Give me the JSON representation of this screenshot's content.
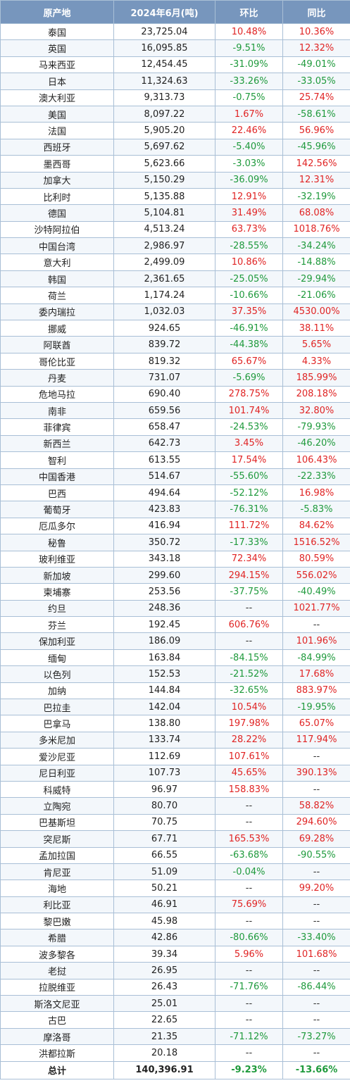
{
  "header": {
    "origin": "原产地",
    "amount": "2024年6月(吨)",
    "mom": "环比",
    "yoy": "同比"
  },
  "rows": [
    {
      "country": "泰国",
      "amount": "23,725.04",
      "mom": "10.48%",
      "yoy": "10.36%"
    },
    {
      "country": "英国",
      "amount": "16,095.85",
      "mom": "-9.51%",
      "yoy": "12.32%"
    },
    {
      "country": "马来西亚",
      "amount": "12,454.45",
      "mom": "-31.09%",
      "yoy": "-49.01%"
    },
    {
      "country": "日本",
      "amount": "11,324.63",
      "mom": "-33.26%",
      "yoy": "-33.05%"
    },
    {
      "country": "澳大利亚",
      "amount": "9,313.73",
      "mom": "-0.75%",
      "yoy": "25.74%"
    },
    {
      "country": "美国",
      "amount": "8,097.22",
      "mom": "1.67%",
      "yoy": "-58.61%"
    },
    {
      "country": "法国",
      "amount": "5,905.20",
      "mom": "22.46%",
      "yoy": "56.96%"
    },
    {
      "country": "西班牙",
      "amount": "5,697.62",
      "mom": "-5.40%",
      "yoy": "-45.96%"
    },
    {
      "country": "墨西哥",
      "amount": "5,623.66",
      "mom": "-3.03%",
      "yoy": "142.56%"
    },
    {
      "country": "加拿大",
      "amount": "5,150.29",
      "mom": "-36.09%",
      "yoy": "12.31%"
    },
    {
      "country": "比利时",
      "amount": "5,135.88",
      "mom": "12.91%",
      "yoy": "-32.19%"
    },
    {
      "country": "德国",
      "amount": "5,104.81",
      "mom": "31.49%",
      "yoy": "68.08%"
    },
    {
      "country": "沙特阿拉伯",
      "amount": "4,513.24",
      "mom": "63.73%",
      "yoy": "1018.76%"
    },
    {
      "country": "中国台湾",
      "amount": "2,986.97",
      "mom": "-28.55%",
      "yoy": "-34.24%"
    },
    {
      "country": "意大利",
      "amount": "2,499.09",
      "mom": "10.86%",
      "yoy": "-14.88%"
    },
    {
      "country": "韩国",
      "amount": "2,361.65",
      "mom": "-25.05%",
      "yoy": "-29.94%"
    },
    {
      "country": "荷兰",
      "amount": "1,174.24",
      "mom": "-10.66%",
      "yoy": "-21.06%"
    },
    {
      "country": "委内瑞拉",
      "amount": "1,032.03",
      "mom": "37.35%",
      "yoy": "4530.00%"
    },
    {
      "country": "挪威",
      "amount": "924.65",
      "mom": "-46.91%",
      "yoy": "38.11%"
    },
    {
      "country": "阿联酋",
      "amount": "839.72",
      "mom": "-44.38%",
      "yoy": "5.65%"
    },
    {
      "country": "哥伦比亚",
      "amount": "819.32",
      "mom": "65.67%",
      "yoy": "4.33%"
    },
    {
      "country": "丹麦",
      "amount": "731.07",
      "mom": "-5.69%",
      "yoy": "185.99%"
    },
    {
      "country": "危地马拉",
      "amount": "690.40",
      "mom": "278.75%",
      "yoy": "208.18%"
    },
    {
      "country": "南非",
      "amount": "659.56",
      "mom": "101.74%",
      "yoy": "32.80%"
    },
    {
      "country": "菲律宾",
      "amount": "658.47",
      "mom": "-24.53%",
      "yoy": "-79.93%"
    },
    {
      "country": "新西兰",
      "amount": "642.73",
      "mom": "3.45%",
      "yoy": "-46.20%"
    },
    {
      "country": "智利",
      "amount": "613.55",
      "mom": "17.54%",
      "yoy": "106.43%"
    },
    {
      "country": "中国香港",
      "amount": "514.67",
      "mom": "-55.60%",
      "yoy": "-22.33%"
    },
    {
      "country": "巴西",
      "amount": "494.64",
      "mom": "-52.12%",
      "yoy": "16.98%"
    },
    {
      "country": "葡萄牙",
      "amount": "423.83",
      "mom": "-76.31%",
      "yoy": "-5.83%"
    },
    {
      "country": "厄瓜多尔",
      "amount": "416.94",
      "mom": "111.72%",
      "yoy": "84.62%"
    },
    {
      "country": "秘鲁",
      "amount": "350.72",
      "mom": "-17.33%",
      "yoy": "1516.52%"
    },
    {
      "country": "玻利维亚",
      "amount": "343.18",
      "mom": "72.34%",
      "yoy": "80.59%"
    },
    {
      "country": "新加坡",
      "amount": "299.60",
      "mom": "294.15%",
      "yoy": "556.02%"
    },
    {
      "country": "柬埔寨",
      "amount": "253.56",
      "mom": "-37.75%",
      "yoy": "-40.49%"
    },
    {
      "country": "约旦",
      "amount": "248.36",
      "mom": "--",
      "yoy": "1021.77%"
    },
    {
      "country": "芬兰",
      "amount": "192.45",
      "mom": "606.76%",
      "yoy": "--"
    },
    {
      "country": "保加利亚",
      "amount": "186.09",
      "mom": "--",
      "yoy": "101.96%"
    },
    {
      "country": "缅甸",
      "amount": "163.84",
      "mom": "-84.15%",
      "yoy": "-84.99%"
    },
    {
      "country": "以色列",
      "amount": "152.53",
      "mom": "-21.52%",
      "yoy": "17.68%"
    },
    {
      "country": "加纳",
      "amount": "144.84",
      "mom": "-32.65%",
      "yoy": "883.97%"
    },
    {
      "country": "巴拉圭",
      "amount": "142.04",
      "mom": "10.54%",
      "yoy": "-19.95%"
    },
    {
      "country": "巴拿马",
      "amount": "138.80",
      "mom": "197.98%",
      "yoy": "65.07%"
    },
    {
      "country": "多米尼加",
      "amount": "133.74",
      "mom": "28.22%",
      "yoy": "117.94%"
    },
    {
      "country": "爱沙尼亚",
      "amount": "112.69",
      "mom": "107.61%",
      "yoy": "--"
    },
    {
      "country": "尼日利亚",
      "amount": "107.73",
      "mom": "45.65%",
      "yoy": "390.13%"
    },
    {
      "country": "科威特",
      "amount": "96.97",
      "mom": "158.83%",
      "yoy": "--"
    },
    {
      "country": "立陶宛",
      "amount": "80.70",
      "mom": "--",
      "yoy": "58.82%"
    },
    {
      "country": "巴基斯坦",
      "amount": "70.75",
      "mom": "--",
      "yoy": "294.60%"
    },
    {
      "country": "突尼斯",
      "amount": "67.71",
      "mom": "165.53%",
      "yoy": "69.28%"
    },
    {
      "country": "孟加拉国",
      "amount": "66.55",
      "mom": "-63.68%",
      "yoy": "-90.55%"
    },
    {
      "country": "肯尼亚",
      "amount": "51.09",
      "mom": "-0.04%",
      "yoy": "--"
    },
    {
      "country": "海地",
      "amount": "50.21",
      "mom": "--",
      "yoy": "99.20%"
    },
    {
      "country": "利比亚",
      "amount": "46.91",
      "mom": "75.69%",
      "yoy": "--"
    },
    {
      "country": "黎巴嫩",
      "amount": "45.98",
      "mom": "--",
      "yoy": "--"
    },
    {
      "country": "希腊",
      "amount": "42.86",
      "mom": "-80.66%",
      "yoy": "-33.40%"
    },
    {
      "country": "波多黎各",
      "amount": "39.34",
      "mom": "5.96%",
      "yoy": "101.68%"
    },
    {
      "country": "老挝",
      "amount": "26.95",
      "mom": "--",
      "yoy": "--"
    },
    {
      "country": "拉脱维亚",
      "amount": "26.43",
      "mom": "-71.76%",
      "yoy": "-86.44%"
    },
    {
      "country": "斯洛文尼亚",
      "amount": "25.01",
      "mom": "--",
      "yoy": "--"
    },
    {
      "country": "古巴",
      "amount": "22.65",
      "mom": "--",
      "yoy": "--"
    },
    {
      "country": "摩洛哥",
      "amount": "21.35",
      "mom": "-71.12%",
      "yoy": "-73.27%"
    },
    {
      "country": "洪都拉斯",
      "amount": "20.18",
      "mom": "--",
      "yoy": "--"
    }
  ],
  "total": {
    "label": "总计",
    "amount": "140,396.91",
    "mom": "-9.23%",
    "yoy": "-13.66%"
  },
  "colors": {
    "header_bg": "#7796bd",
    "positive": "#e02424",
    "negative": "#1f9a3c",
    "border": "#a9bfd6"
  }
}
